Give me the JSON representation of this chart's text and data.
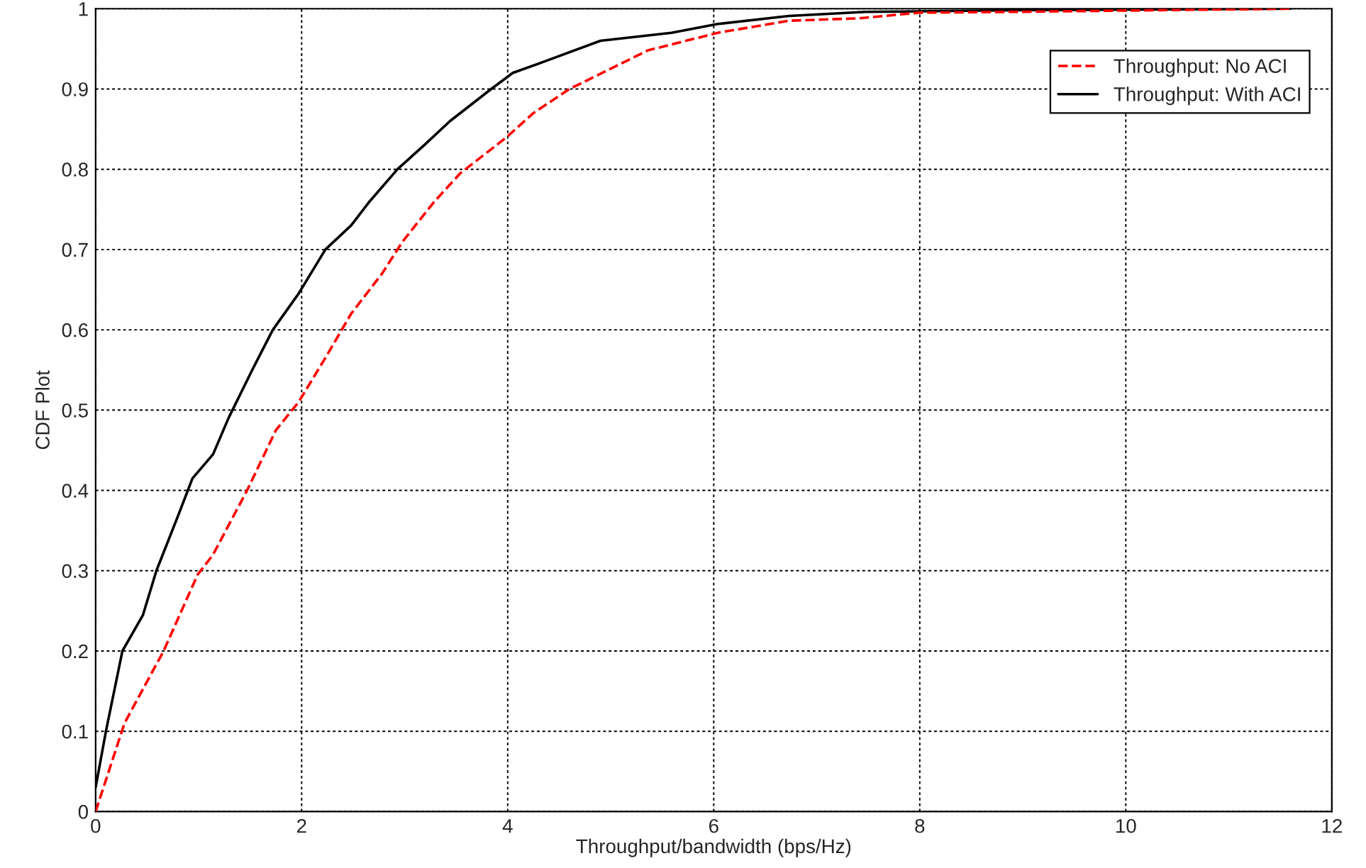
{
  "chart_data": {
    "type": "line",
    "xlabel": "Throughput/bandwidth (bps/Hz)",
    "ylabel": "CDF Plot",
    "xlim": [
      0,
      12
    ],
    "xticks": [
      0,
      2,
      4,
      6,
      8,
      10,
      12
    ],
    "ylim": [
      0,
      1
    ],
    "yticks": [
      0,
      0.1,
      0.2,
      0.3,
      0.4,
      0.5,
      0.6,
      0.7,
      0.8,
      0.9,
      1
    ],
    "grid": true,
    "legend": "top right",
    "series": [
      {
        "name": "Throughput: No ACI",
        "color": "#ff0000",
        "line_style": "dashed",
        "x": [
          0,
          0.28,
          0.66,
          0.99,
          1.14,
          1.47,
          1.75,
          1.97,
          2.23,
          2.48,
          2.78,
          2.98,
          3.29,
          3.54,
          3.99,
          4.25,
          4.6,
          5.36,
          6.04,
          6.73,
          7.41,
          7.99,
          8.9,
          11.6
        ],
        "values": [
          0,
          0.11,
          0.2,
          0.295,
          0.32,
          0.4,
          0.475,
          0.51,
          0.565,
          0.62,
          0.67,
          0.71,
          0.76,
          0.795,
          0.84,
          0.87,
          0.9,
          0.948,
          0.97,
          0.985,
          0.988,
          0.995,
          0.996,
          1.0
        ]
      },
      {
        "name": "Throughput: With ACI",
        "color": "#000000",
        "line_style": "solid",
        "x": [
          0,
          0.1,
          0.26,
          0.46,
          0.59,
          0.79,
          0.94,
          1.14,
          1.29,
          1.52,
          1.72,
          1.97,
          2.23,
          2.48,
          2.66,
          2.93,
          3.19,
          3.44,
          3.84,
          4.05,
          4.33,
          4.9,
          5.59,
          6.04,
          6.73,
          7.47,
          8.9,
          11.6
        ],
        "values": [
          0.03,
          0.1,
          0.2,
          0.245,
          0.3,
          0.365,
          0.415,
          0.445,
          0.49,
          0.55,
          0.6,
          0.645,
          0.7,
          0.73,
          0.76,
          0.8,
          0.83,
          0.86,
          0.9,
          0.92,
          0.933,
          0.96,
          0.97,
          0.981,
          0.991,
          0.996,
          0.998,
          1.0
        ]
      }
    ]
  }
}
